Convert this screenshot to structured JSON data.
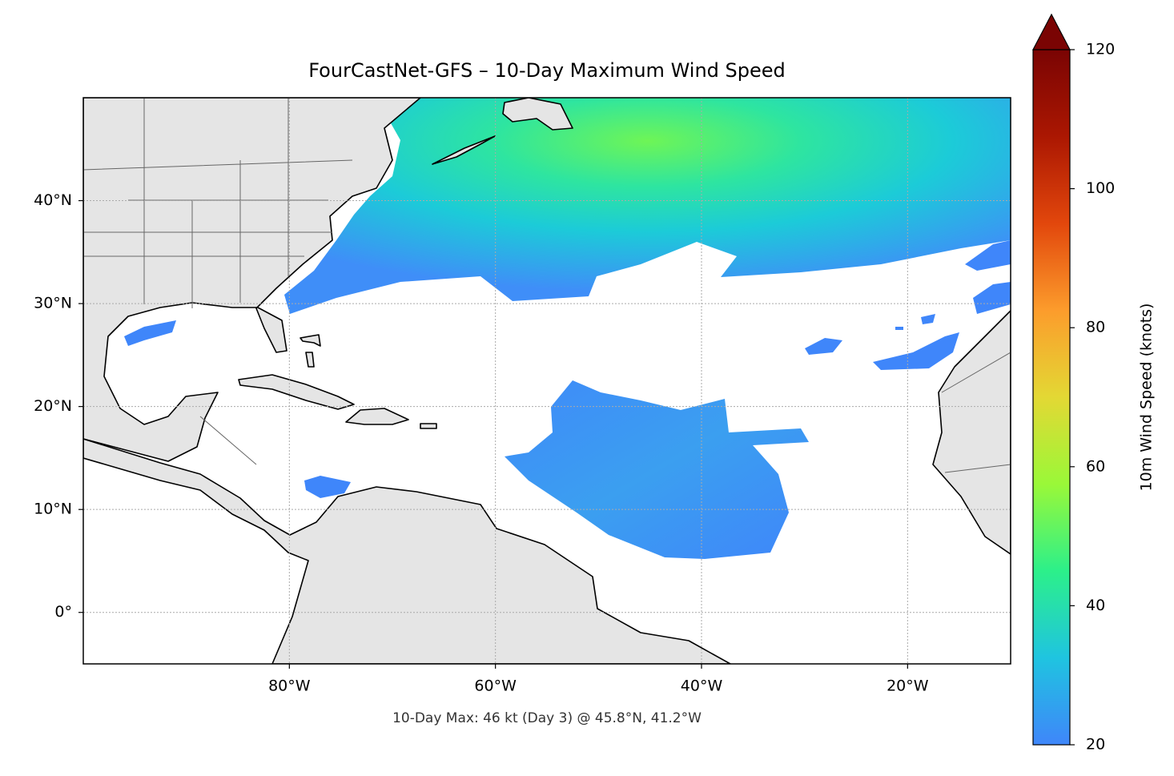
{
  "chart_data": {
    "type": "map",
    "title": "FourCastNet-GFS – 10-Day Maximum Wind Speed",
    "annotation": "10-Day Max: 46 kt (Day 3) @ 45.8°N, 41.2°W",
    "xlim": [
      -100,
      -10
    ],
    "ylim": [
      -5,
      50
    ],
    "xticks": [
      {
        "value": -80,
        "label": "80°W"
      },
      {
        "value": -60,
        "label": "60°W"
      },
      {
        "value": -40,
        "label": "40°W"
      },
      {
        "value": -20,
        "label": "20°W"
      }
    ],
    "yticks": [
      {
        "value": 0,
        "label": "0°"
      },
      {
        "value": 10,
        "label": "10°N"
      },
      {
        "value": 20,
        "label": "20°N"
      },
      {
        "value": 30,
        "label": "30°N"
      },
      {
        "value": 40,
        "label": "40°N"
      }
    ],
    "grid": true,
    "colorbar": {
      "label": "10m Wind Speed (knots)",
      "lim": [
        20,
        120
      ],
      "ticks": [
        20,
        40,
        60,
        80,
        100,
        120
      ],
      "colormap": "turbo",
      "extend": "max"
    }
  }
}
